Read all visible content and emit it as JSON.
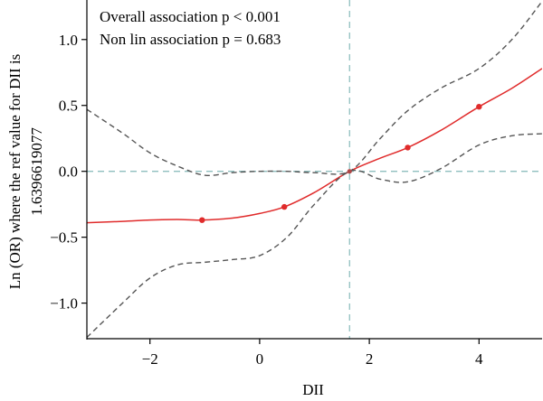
{
  "chart_data": {
    "type": "line",
    "xlabel": "DII",
    "ylabel_line1": "Ln (OR) where the ref value for DII is",
    "ylabel_line2": "1.6396619077",
    "xlim": [
      -3.15,
      5.15
    ],
    "ylim": [
      -1.27,
      1.3
    ],
    "x_ticks": [
      -2,
      0,
      2,
      4
    ],
    "x_tick_labels": [
      "−2",
      "0",
      "2",
      "4"
    ],
    "y_ticks": [
      -1.0,
      -0.5,
      0.0,
      0.5,
      1.0
    ],
    "y_tick_labels": [
      "−1.0",
      "−0.5",
      "0.0",
      "0.5",
      "1.0"
    ],
    "annotations": [
      "Overall association p < 0.001",
      "Non lin association p = 0.683"
    ],
    "reference_lines": {
      "x": 1.6397,
      "y": 0.0
    },
    "colors": {
      "estimate": "#e02b2b",
      "ci": "#555555",
      "reference": "#8fbfbf",
      "axis": "#000000"
    },
    "series": [
      {
        "role": "estimate",
        "x": [
          -3.15,
          -2.5,
          -2.0,
          -1.5,
          -1.05,
          -0.5,
          0.0,
          0.45,
          1.0,
          1.6397,
          2.2,
          2.7,
          3.3,
          4.0,
          4.6,
          5.15
        ],
        "y": [
          -0.39,
          -0.38,
          -0.37,
          -0.365,
          -0.37,
          -0.355,
          -0.32,
          -0.27,
          -0.16,
          0.0,
          0.1,
          0.18,
          0.31,
          0.49,
          0.63,
          0.78
        ]
      },
      {
        "role": "upper",
        "x": [
          -3.15,
          -2.5,
          -2.0,
          -1.5,
          -1.0,
          -0.5,
          0.0,
          0.5,
          1.0,
          1.6397,
          2.2,
          2.7,
          3.3,
          4.0,
          4.6,
          5.15
        ],
        "y": [
          0.47,
          0.29,
          0.14,
          0.04,
          -0.03,
          -0.01,
          0.0,
          0.0,
          -0.01,
          0.0,
          0.25,
          0.46,
          0.63,
          0.78,
          1.0,
          1.29
        ]
      },
      {
        "role": "lower",
        "x": [
          -3.15,
          -2.5,
          -2.0,
          -1.5,
          -1.0,
          -0.5,
          0.0,
          0.5,
          1.0,
          1.6397,
          2.2,
          2.7,
          3.3,
          4.0,
          4.6,
          5.15
        ],
        "y": [
          -1.26,
          -1.0,
          -0.81,
          -0.71,
          -0.69,
          -0.67,
          -0.64,
          -0.5,
          -0.25,
          0.0,
          -0.06,
          -0.08,
          0.02,
          0.2,
          0.27,
          0.285
        ]
      }
    ],
    "points": {
      "x": [
        -1.05,
        0.45,
        1.6397,
        2.7,
        4.0
      ],
      "y": [
        -0.37,
        -0.27,
        0.0,
        0.18,
        0.49
      ]
    }
  }
}
